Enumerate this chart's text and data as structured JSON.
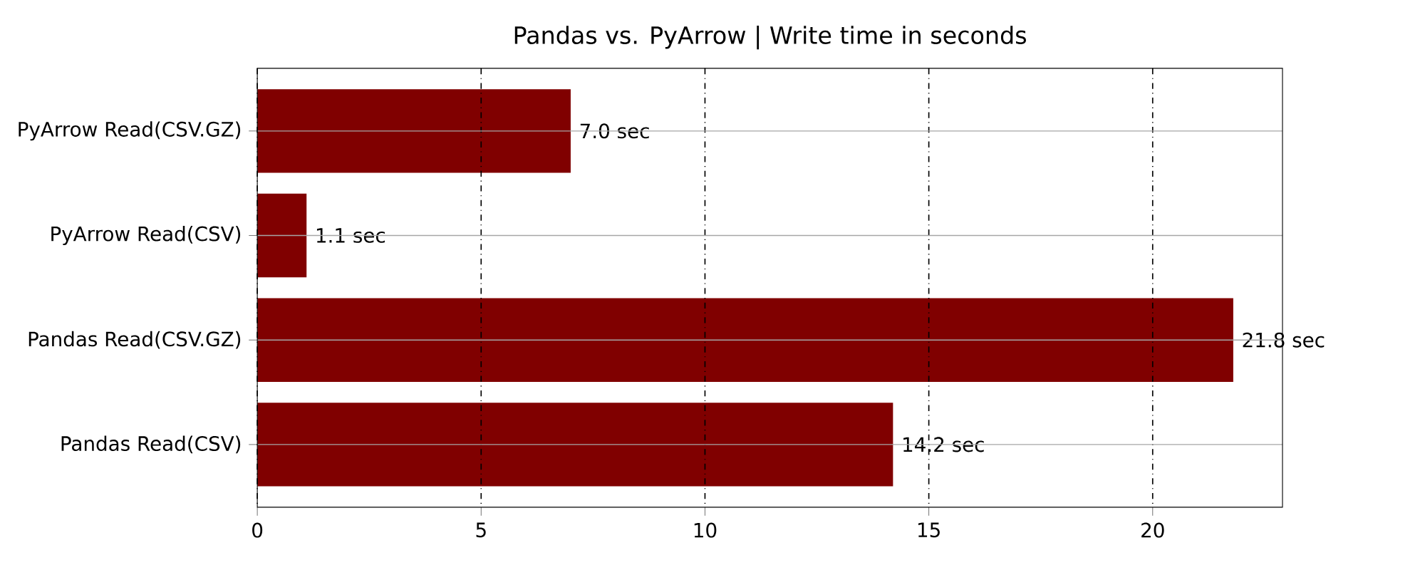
{
  "chart_data": {
    "type": "bar",
    "orientation": "horizontal",
    "title": "Pandas vs. PyArrow | Write time in seconds",
    "categories": [
      "PyArrow Read(CSV.GZ)",
      "PyArrow Read(CSV)",
      "Pandas Read(CSV.GZ)",
      "Pandas Read(CSV)"
    ],
    "values": [
      7.0,
      1.1,
      21.8,
      14.2
    ],
    "value_labels": [
      "7.0 sec",
      "1.1 sec",
      "21.8 sec",
      "14.2 sec"
    ],
    "color": "#800000",
    "xlim": [
      0,
      22.9
    ],
    "xticks": [
      0,
      5,
      10,
      15,
      20
    ],
    "grid": true
  }
}
